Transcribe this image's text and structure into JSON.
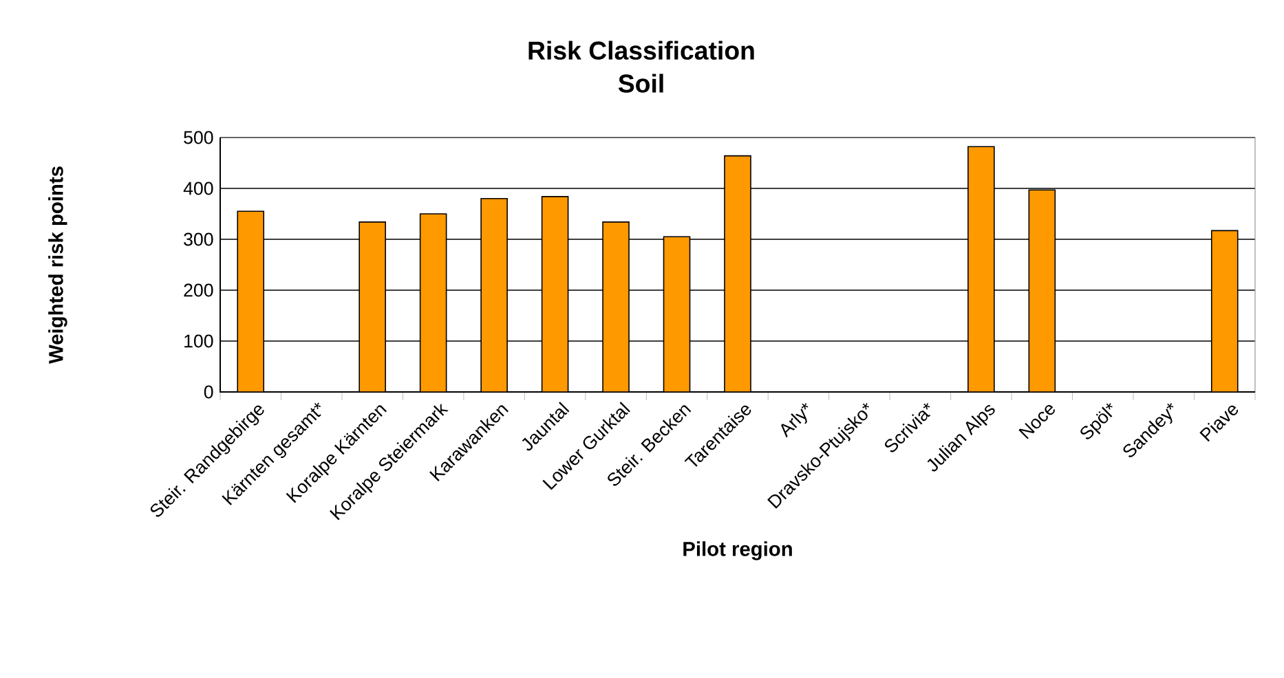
{
  "chart_data": {
    "type": "bar",
    "title": "Risk Classification",
    "subtitle": "Soil",
    "xlabel": "Pilot region",
    "ylabel": "Weighted risk points",
    "categories": [
      "Steir. Randgebirge",
      "Kärnten gesamt*",
      "Koralpe Kärnten",
      "Koralpe Steiermark",
      "Karawanken",
      "Jauntal",
      "Lower Gurktal",
      "Steir. Becken",
      "Tarentaise",
      "Arly*",
      "Dravsko-Ptujsko*",
      "Scrivia*",
      "Julian Alps",
      "Noce",
      "Spöl*",
      "Sandey*",
      "Piave"
    ],
    "values": [
      355,
      null,
      334,
      350,
      380,
      384,
      334,
      305,
      464,
      null,
      null,
      null,
      482,
      397,
      null,
      null,
      317
    ],
    "color": "#ff9900",
    "ylim": [
      0,
      500
    ],
    "yticks": [
      0,
      100,
      200,
      300,
      400,
      500
    ],
    "grid": "y"
  }
}
